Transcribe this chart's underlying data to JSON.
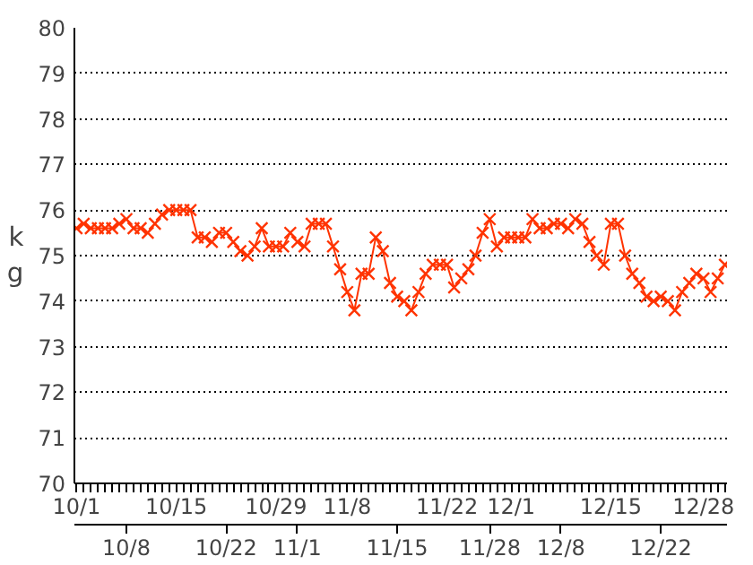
{
  "chart_data": {
    "type": "line",
    "ylabel": "kg",
    "ylim": [
      70,
      80
    ],
    "yticks": [
      70,
      71,
      72,
      73,
      74,
      75,
      76,
      77,
      78,
      79,
      80
    ],
    "grid": "y",
    "marker": "cross",
    "line_style": "solid",
    "categories": [
      "10/1",
      null,
      null,
      null,
      null,
      null,
      null,
      "10/8",
      null,
      null,
      null,
      null,
      null,
      null,
      "10/15",
      null,
      null,
      null,
      null,
      null,
      null,
      "10/22",
      null,
      null,
      null,
      null,
      null,
      null,
      "10/29",
      null,
      null,
      "11/1",
      null,
      null,
      null,
      null,
      null,
      null,
      "11/8",
      null,
      null,
      null,
      null,
      null,
      null,
      "11/15",
      null,
      null,
      null,
      null,
      null,
      null,
      "11/22",
      null,
      null,
      null,
      null,
      null,
      "11/28",
      null,
      null,
      "12/1",
      null,
      null,
      null,
      null,
      null,
      null,
      "12/8",
      null,
      null,
      null,
      null,
      null,
      null,
      "12/15",
      null,
      null,
      null,
      null,
      null,
      null,
      "12/22",
      null,
      null,
      null,
      null,
      null,
      "12/28",
      null,
      null,
      null
    ],
    "series": [
      {
        "color": "#ff3300",
        "values": [
          75.6,
          75.7,
          75.6,
          75.6,
          75.6,
          75.6,
          75.7,
          75.8,
          75.6,
          75.6,
          75.5,
          75.7,
          75.9,
          76.0,
          76.0,
          76.0,
          76.0,
          75.4,
          75.4,
          75.3,
          75.5,
          75.5,
          75.3,
          75.1,
          75.0,
          75.2,
          75.6,
          75.2,
          75.2,
          75.2,
          75.5,
          75.3,
          75.2,
          75.7,
          75.7,
          75.7,
          75.2,
          74.7,
          74.2,
          73.8,
          74.6,
          74.6,
          75.4,
          75.1,
          74.4,
          74.1,
          74.0,
          73.8,
          74.2,
          74.6,
          74.8,
          74.8,
          74.8,
          74.3,
          74.5,
          74.7,
          75.0,
          75.5,
          75.8,
          75.2,
          75.4,
          75.4,
          75.4,
          75.4,
          75.8,
          75.6,
          75.6,
          75.7,
          75.7,
          75.6,
          75.8,
          75.7,
          75.3,
          75.0,
          74.8,
          75.7,
          75.7,
          75.0,
          74.6,
          74.4,
          74.1,
          74.0,
          74.1,
          74.0,
          73.8,
          74.2,
          74.4,
          74.6,
          74.5,
          74.2,
          74.5,
          74.8
        ]
      }
    ]
  }
}
